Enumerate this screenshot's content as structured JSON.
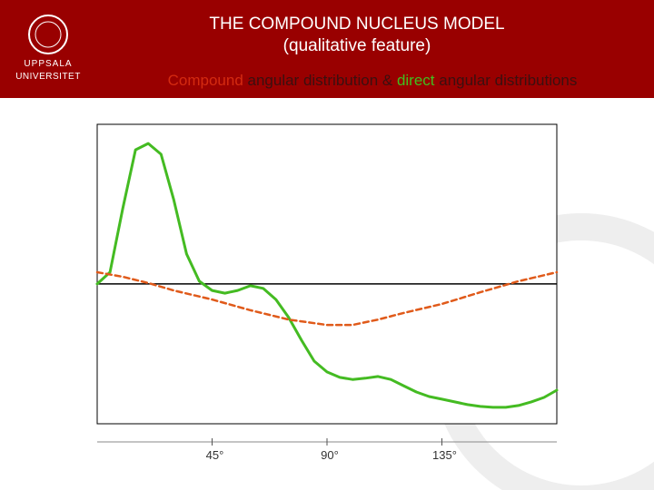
{
  "logo": {
    "lines": [
      "UPPSALA",
      "UNIVERSITET"
    ]
  },
  "chart_data": {
    "type": "line",
    "title": [
      "THE COMPOUND NUCLEUS MODEL",
      "(qualitative feature)"
    ],
    "subtitle_parts": [
      {
        "text": "Compound",
        "color": "#d42a10"
      },
      {
        "text": " angular distribution & ",
        "color": "#3a1010"
      },
      {
        "text": "direct",
        "color": "#3fbf1f"
      },
      {
        "text": " angular distributions",
        "color": "#3a1010"
      }
    ],
    "xlim": [
      0,
      180
    ],
    "xticks": [
      {
        "value": 45,
        "label": "45°"
      },
      {
        "value": 90,
        "label": "90°"
      },
      {
        "value": 135,
        "label": "135°"
      }
    ],
    "ylim": [
      0,
      100
    ],
    "reference_line": 46.7,
    "series": [
      {
        "color": "#44bb22",
        "dashed": false,
        "x": [
          0,
          5,
          10,
          15,
          20,
          25,
          30,
          35,
          40,
          45,
          50,
          55,
          60,
          65,
          70,
          75,
          80,
          85,
          90,
          95,
          100,
          105,
          110,
          115,
          120,
          125,
          130,
          135,
          140,
          145,
          150,
          155,
          160,
          165,
          170,
          175,
          180
        ],
        "values": [
          46.7,
          50.6,
          71.8,
          91.5,
          93.6,
          90.0,
          74.8,
          56.7,
          47.6,
          44.5,
          43.6,
          44.5,
          46.1,
          45.2,
          41.5,
          35.5,
          27.9,
          20.9,
          17.3,
          15.5,
          14.8,
          15.2,
          15.8,
          14.8,
          12.7,
          10.6,
          9.1,
          8.2,
          7.3,
          6.4,
          5.8,
          5.5,
          5.5,
          6.1,
          7.3,
          8.8,
          11.2
        ]
      },
      {
        "color": "#e05a1a",
        "dashed": true,
        "x": [
          0,
          10,
          20,
          30,
          45,
          60,
          75,
          90,
          100,
          110,
          120,
          135,
          150,
          165,
          180
        ],
        "values": [
          50.6,
          49.1,
          47.0,
          44.5,
          41.5,
          37.9,
          34.8,
          33.0,
          33.0,
          34.8,
          37.0,
          40.0,
          43.9,
          47.6,
          50.6
        ]
      }
    ]
  }
}
